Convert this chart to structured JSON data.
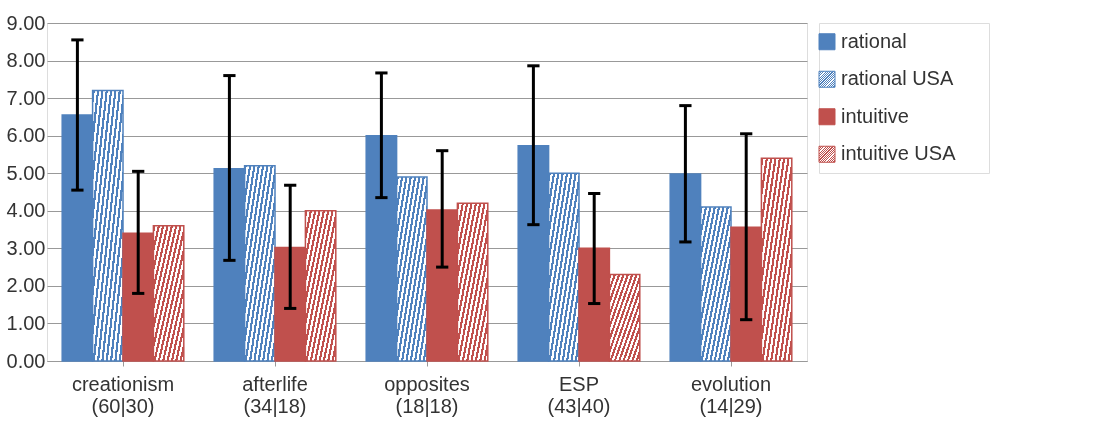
{
  "chart_data": {
    "type": "bar",
    "categories": [
      "creationism\n(60|30)",
      "afterlife\n(34|18)",
      "opposites\n(18|18)",
      "ESP\n(43|40)",
      "evolution\n(14|29)"
    ],
    "ylim": [
      0,
      9
    ],
    "yticks": [
      {
        "value": 0,
        "label": "0.00"
      },
      {
        "value": 1,
        "label": "1.00"
      },
      {
        "value": 2,
        "label": "2.00"
      },
      {
        "value": 3,
        "label": "3.00"
      },
      {
        "value": 4,
        "label": "4.00"
      },
      {
        "value": 5,
        "label": "5.00"
      },
      {
        "value": 6,
        "label": "6.00"
      },
      {
        "value": 7,
        "label": "7.00"
      },
      {
        "value": 8,
        "label": "8.00"
      },
      {
        "value": 9,
        "label": "9.00"
      }
    ],
    "grid": "y",
    "legend": "right",
    "series": [
      {
        "name": "rational",
        "color": "#4f81bd",
        "values": [
          6.55,
          5.12,
          6.0,
          5.73,
          4.98
        ],
        "errors": [
          [
            4.55,
            8.55
          ],
          [
            2.68,
            7.6
          ],
          [
            4.35,
            7.67
          ],
          [
            3.63,
            7.86
          ],
          [
            3.17,
            6.8
          ]
        ]
      },
      {
        "name": "rational USA",
        "color": "#4f81bd",
        "values": [
          7.2,
          5.2,
          4.9,
          5.0,
          4.1
        ]
      },
      {
        "name": "intuitive",
        "color": "#c0504d",
        "values": [
          3.4,
          3.02,
          4.02,
          3.0,
          3.56
        ],
        "errors": [
          [
            1.8,
            5.05
          ],
          [
            1.4,
            4.68
          ],
          [
            2.5,
            5.6
          ],
          [
            1.53,
            4.46
          ],
          [
            1.1,
            6.05
          ]
        ]
      },
      {
        "name": "intuitive USA",
        "color": "#c0504d",
        "values": [
          3.6,
          4.0,
          4.2,
          2.3,
          5.4
        ]
      }
    ]
  }
}
